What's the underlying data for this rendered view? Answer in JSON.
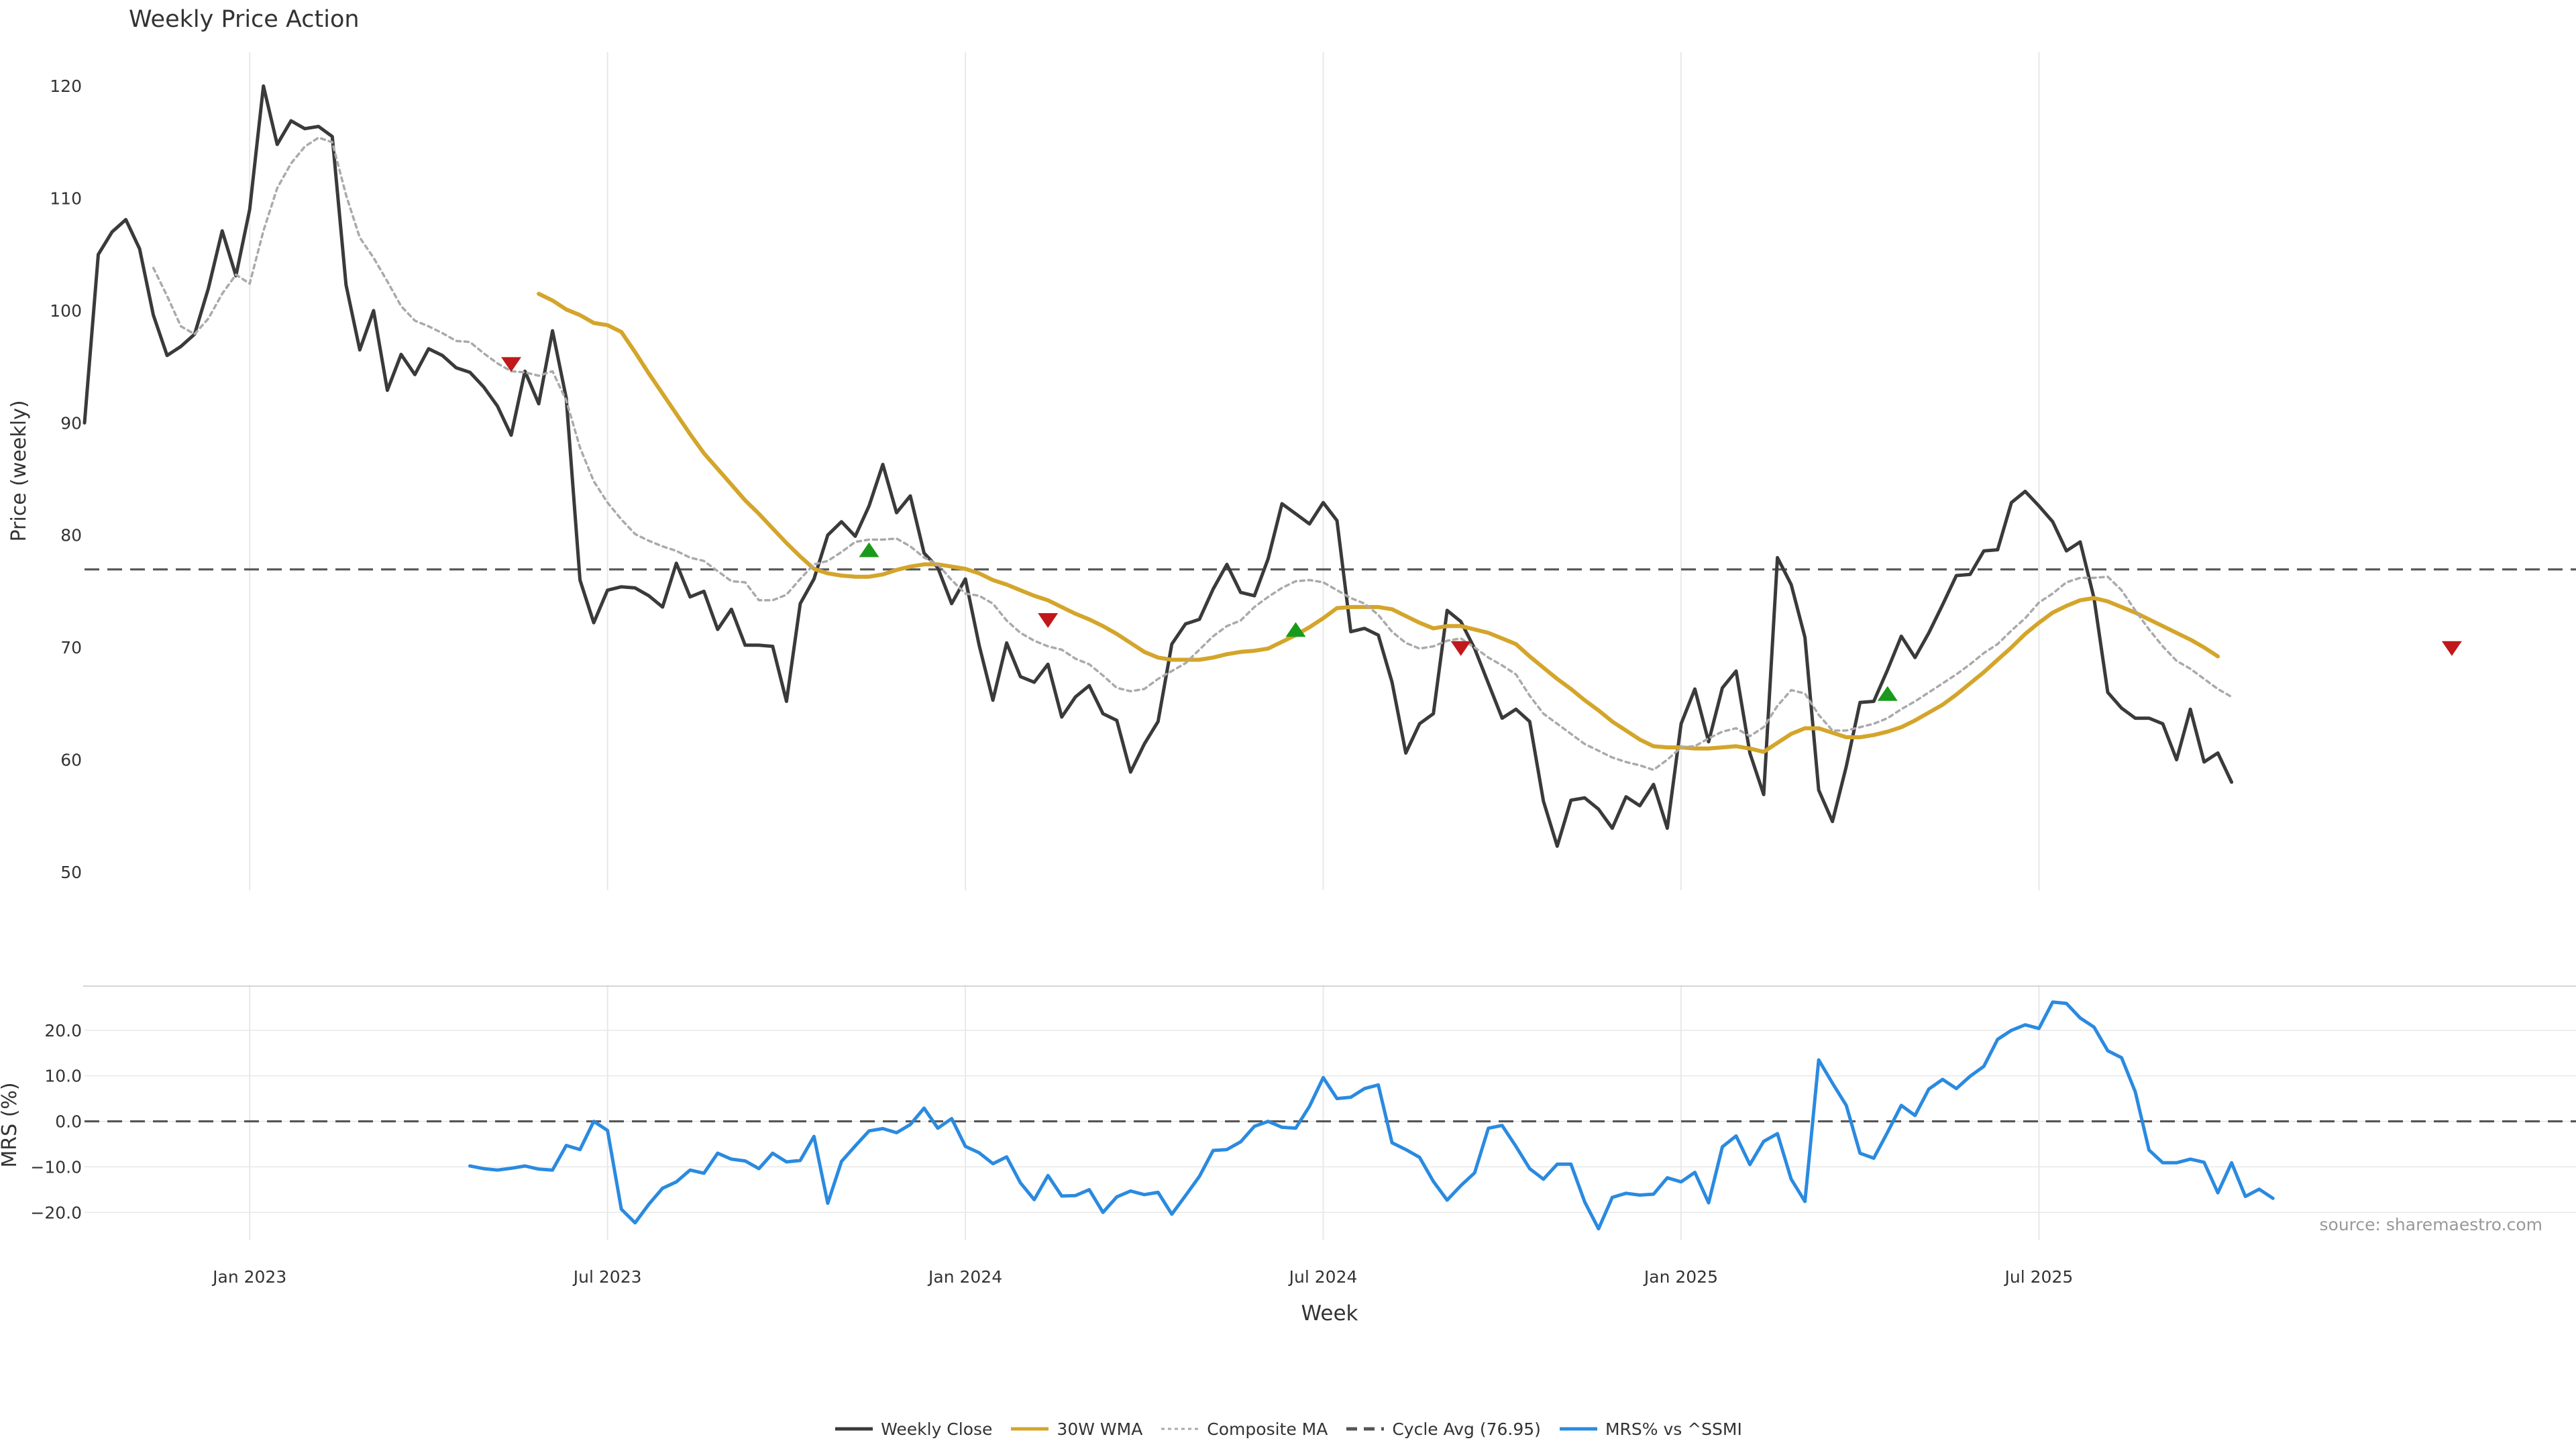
{
  "chart_data": {
    "type": "line",
    "title": "Weekly Price Action",
    "xlabel": "Week",
    "source_note": "source: sharemaestro.com",
    "x_ticks": [
      "Jan 2023",
      "Jul 2023",
      "Jan 2024",
      "Jul 2024",
      "Jan 2025",
      "Jul 2025"
    ],
    "grid": "vertical",
    "legend_position": "bottom-center",
    "weeks": 179,
    "panels": [
      {
        "name": "price",
        "ylabel": "Price (weekly)",
        "ylim": [
          48.5,
          123
        ],
        "yticks": [
          50,
          60,
          70,
          80,
          90,
          100,
          110,
          120
        ],
        "reference_line": {
          "label": "Cycle Avg (76.95)",
          "value": 76.95
        },
        "series": [
          {
            "name": "Weekly Close",
            "color": "#3a3a3a",
            "start_week": 0,
            "values": [
              90.0,
              105.0,
              107.0,
              108.1,
              105.5,
              99.6,
              96.0,
              96.8,
              97.9,
              102.0,
              107.1,
              103.1,
              109.0,
              120.0,
              114.8,
              116.9,
              116.2,
              116.4,
              115.5,
              102.3,
              96.5,
              100.0,
              92.9,
              96.1,
              94.3,
              96.6,
              96.0,
              94.9,
              94.5,
              93.2,
              91.5,
              88.9,
              94.6,
              91.7,
              98.2,
              92.2,
              76.0,
              72.2,
              75.1,
              75.4,
              75.3,
              74.6,
              73.6,
              77.5,
              74.5,
              75.0,
              71.6,
              73.4,
              70.2,
              70.2,
              70.1,
              65.2,
              73.9,
              76.1,
              80.0,
              81.2,
              79.9,
              82.6,
              86.3,
              82.0,
              83.5,
              78.4,
              77.1,
              73.9,
              76.1,
              70.2,
              65.3,
              70.4,
              67.4,
              66.9,
              68.5,
              63.8,
              65.6,
              66.6,
              64.1,
              63.5,
              58.9,
              61.4,
              63.4,
              70.3,
              72.1,
              72.5,
              75.2,
              77.4,
              74.9,
              74.6,
              77.9,
              82.8,
              81.9,
              81.0,
              82.9,
              81.3,
              71.4,
              71.7,
              71.1,
              66.9,
              60.6,
              63.2,
              64.1,
              73.3,
              72.3,
              69.9,
              66.8,
              63.7,
              64.5,
              63.4,
              56.3,
              52.3,
              56.4,
              56.6,
              55.6,
              53.9,
              56.7,
              55.9,
              57.8,
              53.9,
              63.2,
              66.3,
              61.6,
              66.4,
              67.9,
              60.6,
              56.9,
              78.0,
              75.6,
              70.9,
              57.3,
              54.5,
              59.4,
              65.1,
              65.2,
              68.0,
              71.0,
              69.1,
              71.3,
              73.8,
              76.4,
              76.5,
              78.6,
              78.7,
              82.9,
              83.9,
              82.6,
              81.2,
              78.6,
              79.4,
              74.4,
              66.0,
              64.6,
              63.7,
              63.7,
              63.2,
              60.0,
              64.5,
              59.8,
              60.6,
              58.0
            ]
          },
          {
            "name": "30W WMA",
            "color": "#d4a52b",
            "start_week": 33,
            "values": [
              101.5,
              100.9,
              100.1,
              99.6,
              98.9,
              98.7,
              98.1,
              96.3,
              94.4,
              92.6,
              90.8,
              89.0,
              87.3,
              85.9,
              84.5,
              83.1,
              81.9,
              80.6,
              79.3,
              78.1,
              77.0,
              76.6,
              76.4,
              76.3,
              76.3,
              76.5,
              76.9,
              77.2,
              77.4,
              77.4,
              77.2,
              77.0,
              76.6,
              76.0,
              75.6,
              75.1,
              74.6,
              74.2,
              73.6,
              73.0,
              72.5,
              71.9,
              71.2,
              70.4,
              69.6,
              69.1,
              68.9,
              68.9,
              68.9,
              69.1,
              69.4,
              69.6,
              69.7,
              69.9,
              70.5,
              71.1,
              71.8,
              72.6,
              73.5,
              73.6,
              73.6,
              73.6,
              73.4,
              72.8,
              72.2,
              71.7,
              71.9,
              71.9,
              71.6,
              71.3,
              70.8,
              70.3,
              69.2,
              68.2,
              67.2,
              66.3,
              65.3,
              64.4,
              63.4,
              62.6,
              61.8,
              61.2,
              61.1,
              61.1,
              61.0,
              61.0,
              61.1,
              61.2,
              61.0,
              60.7,
              61.5,
              62.3,
              62.8,
              62.8,
              62.4,
              62.0,
              62.0,
              62.2,
              62.5,
              62.9,
              63.5,
              64.2,
              64.9,
              65.8,
              66.8,
              67.8,
              68.9,
              70.0,
              71.2,
              72.2,
              73.1,
              73.7,
              74.2,
              74.4,
              74.1,
              73.6,
              73.1,
              72.5,
              71.9,
              71.3,
              70.7,
              70.0,
              69.2
            ]
          },
          {
            "name": "Composite MA",
            "color": "#aaaaaa",
            "start_week": 5,
            "values": [
              103.8,
              101.3,
              98.6,
              97.9,
              99.3,
              101.5,
              103.2,
              102.4,
              107.1,
              110.9,
              113.1,
              114.6,
              115.4,
              115.0,
              110.3,
              106.5,
              104.7,
              102.6,
              100.4,
              99.1,
              98.6,
              98.0,
              97.3,
              97.2,
              96.2,
              95.3,
              94.6,
              94.5,
              94.2,
              94.6,
              92.0,
              87.8,
              84.8,
              82.9,
              81.4,
              80.1,
              79.5,
              79.0,
              78.6,
              78.0,
              77.7,
              76.8,
              75.9,
              75.8,
              74.2,
              74.2,
              74.7,
              76.1,
              77.4,
              77.7,
              78.5,
              79.4,
              79.6,
              79.6,
              79.7,
              79.0,
              78.0,
              77.4,
              76.0,
              74.8,
              74.6,
              73.9,
              72.4,
              71.3,
              70.6,
              70.1,
              69.8,
              69.0,
              68.5,
              67.5,
              66.4,
              66.1,
              66.3,
              67.2,
              67.9,
              68.6,
              69.8,
              71.0,
              71.9,
              72.4,
              73.6,
              74.5,
              75.3,
              75.9,
              76.0,
              75.8,
              75.1,
              74.4,
              73.9,
              72.9,
              71.4,
              70.4,
              69.9,
              70.1,
              70.6,
              70.8,
              70.0,
              69.1,
              68.4,
              67.6,
              65.7,
              64.1,
              63.2,
              62.3,
              61.4,
              60.8,
              60.2,
              59.8,
              59.5,
              59.1,
              60.0,
              61.1,
              61.2,
              61.9,
              62.5,
              62.8,
              62.1,
              62.9,
              64.8,
              66.2,
              65.9,
              64.0,
              62.6,
              62.6,
              62.9,
              63.2,
              63.7,
              64.5,
              65.2,
              66.0,
              66.8,
              67.6,
              68.5,
              69.5,
              70.3,
              71.5,
              72.6,
              74.0,
              74.8,
              75.8,
              76.2,
              76.2,
              76.3,
              75.1,
              73.3,
              71.6,
              70.1,
              68.8,
              68.1,
              67.2,
              66.3,
              65.6
            ]
          }
        ],
        "signals": [
          {
            "type": "sell",
            "week": 31,
            "value": 95.2
          },
          {
            "type": "buy",
            "week": 57,
            "value": 78.7
          },
          {
            "type": "sell",
            "week": 70,
            "value": 72.4
          },
          {
            "type": "buy",
            "week": 88,
            "value": 71.6
          },
          {
            "type": "sell",
            "week": 100,
            "value": 69.9
          },
          {
            "type": "buy",
            "week": 131,
            "value": 65.9
          },
          {
            "type": "sell",
            "week": 172,
            "value": 69.9
          }
        ]
      },
      {
        "name": "mrs",
        "ylabel": "MRS (%)",
        "ylim": [
          -26,
          30
        ],
        "yticks": [
          -20.0,
          -10.0,
          0.0,
          10.0,
          20.0
        ],
        "ytick_labels": [
          "−20.0",
          "−10.0",
          "0.0",
          "10.0",
          "20.0"
        ],
        "reference_line": {
          "value": 0
        },
        "series": [
          {
            "name": "MRS% vs ^SSMI",
            "color": "#2a8ae0",
            "start_week": 28,
            "values": [
              -9.8,
              -10.4,
              -10.7,
              -10.3,
              -9.8,
              -10.5,
              -10.7,
              -5.3,
              -6.2,
              0.0,
              -2.0,
              -19.3,
              -22.3,
              -18.2,
              -14.7,
              -13.3,
              -10.7,
              -11.4,
              -7.0,
              -8.3,
              -8.7,
              -10.4,
              -7.0,
              -8.9,
              -8.6,
              -3.3,
              -18.0,
              -8.8,
              -5.4,
              -2.1,
              -1.6,
              -2.5,
              -0.7,
              2.9,
              -1.5,
              0.6,
              -5.5,
              -6.9,
              -9.3,
              -7.8,
              -13.5,
              -17.2,
              -11.9,
              -16.4,
              -16.3,
              -15.0,
              -20.0,
              -16.6,
              -15.3,
              -16.1,
              -15.6,
              -20.4,
              -16.3,
              -12.1,
              -6.4,
              -6.2,
              -4.5,
              -1.1,
              0.0,
              -1.3,
              -1.5,
              3.3,
              9.6,
              5.0,
              5.3,
              7.2,
              8.0,
              -4.7,
              -6.2,
              -7.9,
              -13.2,
              -17.3,
              -14.1,
              -11.3,
              -1.5,
              -0.9,
              -5.5,
              -10.4,
              -12.7,
              -9.4,
              -9.4,
              -17.7,
              -23.6,
              -16.7,
              -15.8,
              -16.2,
              -16.0,
              -12.4,
              -13.3,
              -11.2,
              -17.9,
              -5.6,
              -3.2,
              -9.5,
              -4.4,
              -2.7,
              -12.7,
              -17.6,
              13.5,
              8.4,
              3.5,
              -7.0,
              -8.1,
              -2.4,
              3.5,
              1.3,
              7.1,
              9.2,
              7.2,
              9.9,
              12.1,
              18.0,
              20.0,
              21.2,
              20.4,
              26.2,
              25.9,
              22.7,
              20.7,
              15.5,
              14.0,
              6.5,
              -6.3,
              -9.1,
              -9.1,
              -8.3,
              -9.0,
              -15.7,
              -9.1,
              -16.5,
              -14.9,
              -16.9
            ]
          }
        ]
      }
    ]
  },
  "legend": [
    {
      "label": "Weekly Close",
      "color": "#3a3a3a",
      "style": "solid"
    },
    {
      "label": "30W WMA",
      "color": "#d4a52b",
      "style": "solid"
    },
    {
      "label": "Composite MA",
      "color": "#aaaaaa",
      "style": "dotted"
    },
    {
      "label": "Cycle Avg (76.95)",
      "color": "#555555",
      "style": "dashed"
    },
    {
      "label": "MRS% vs ^SSMI",
      "color": "#2a8ae0",
      "style": "solid"
    }
  ],
  "colors": {
    "buy_signal": "#1a9a1a",
    "sell_signal": "#c0181b",
    "grid": "#e8e8e8",
    "reference": "#555555"
  }
}
